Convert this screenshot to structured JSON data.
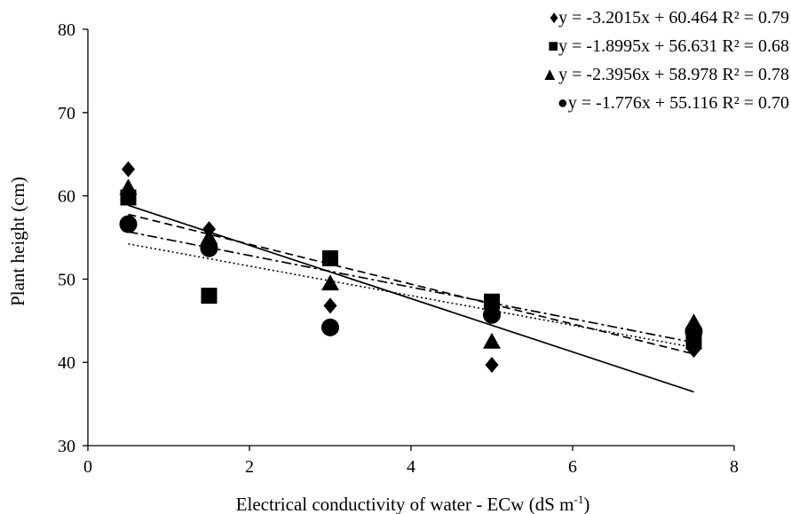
{
  "chart_data": {
    "type": "scatter",
    "title": "",
    "xlabel": "Electrical conductivity of water - ECw (dS m",
    "xlabel_superscript": "-1",
    "xlabel_suffix": ")",
    "ylabel": "Plant height (cm)",
    "xlim": [
      0,
      8
    ],
    "ylim": [
      30,
      80
    ],
    "x_ticks": [
      0,
      2,
      4,
      6,
      8
    ],
    "y_ticks": [
      30,
      40,
      50,
      60,
      70,
      80
    ],
    "grid": false,
    "legend_position": "top-right",
    "x": [
      0.5,
      1.5,
      3,
      5,
      7.5
    ],
    "series": [
      {
        "marker": "diamond",
        "legend_symbol": "♦",
        "line_style": "solid",
        "values": [
          63.2,
          56.0,
          46.8,
          39.7,
          41.5
        ],
        "trendline": {
          "slope": -3.2015,
          "intercept": 60.464
        },
        "equation": "y = -3.2015x + 60.464",
        "r2": "R² = 0.79"
      },
      {
        "marker": "square",
        "legend_symbol": "■",
        "line_style": "dash-dot",
        "values": [
          59.8,
          48.0,
          52.5,
          47.3,
          42.5
        ],
        "trendline": {
          "slope": -1.8995,
          "intercept": 56.631
        },
        "equation": "y = -1.8995x + 56.631",
        "r2": "R² = 0.68"
      },
      {
        "marker": "triangle",
        "legend_symbol": "▲",
        "line_style": "dashed",
        "values": [
          61.0,
          55.0,
          49.5,
          42.5,
          44.8
        ],
        "trendline": {
          "slope": -2.3956,
          "intercept": 58.978
        },
        "equation": "y = -2.3956x + 58.978",
        "r2": "R² = 0.78"
      },
      {
        "marker": "circle",
        "legend_symbol": "●",
        "line_style": "dotted",
        "values": [
          56.6,
          53.7,
          44.2,
          45.7,
          43.7
        ],
        "trendline": {
          "slope": -1.776,
          "intercept": 55.116
        },
        "equation": "y = -1.776x + 55.116",
        "r2": "R² = 0.70"
      }
    ]
  }
}
